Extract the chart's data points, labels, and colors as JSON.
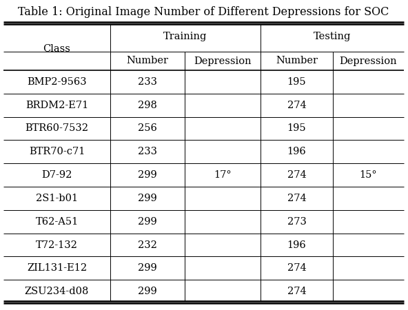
{
  "title": "Table 1: Original Image Number of Different Depressions for SOC",
  "rows": [
    [
      "BMP2-9563",
      "233",
      "195"
    ],
    [
      "BRDM2-E71",
      "298",
      "274"
    ],
    [
      "BTR60-7532",
      "256",
      "195"
    ],
    [
      "BTR70-c71",
      "233",
      "196"
    ],
    [
      "D7-92",
      "299",
      "274"
    ],
    [
      "2S1-b01",
      "299",
      "274"
    ],
    [
      "T62-A51",
      "299",
      "273"
    ],
    [
      "T72-132",
      "232",
      "196"
    ],
    [
      "ZIL131-E12",
      "299",
      "274"
    ],
    [
      "ZSU234-d08",
      "299",
      "274"
    ]
  ],
  "training_depression": "17°",
  "testing_depression": "15°",
  "bg_color": "#ffffff",
  "text_color": "#000000",
  "font_size": 10.5,
  "title_font_size": 11.5,
  "depression_mid_row": 4
}
